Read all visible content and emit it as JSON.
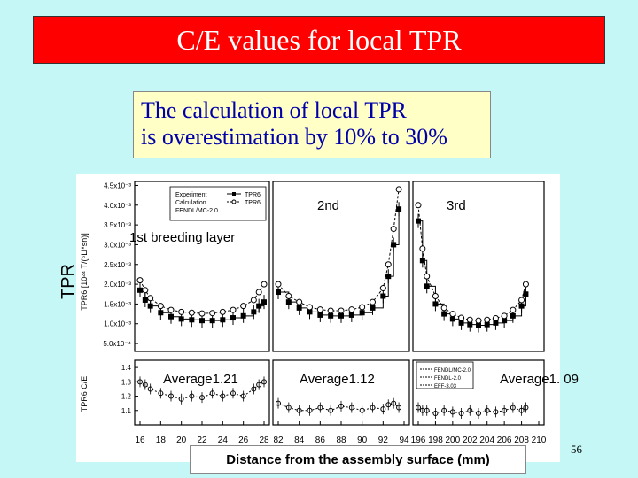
{
  "slide": {
    "title": "C/E values for local TPR",
    "callout_line1": "The calculation of local TPR",
    "callout_line2": "is overestimation by 10% to 30%",
    "side_label": "TPR",
    "x_label": "Distance from the assembly surface (mm)",
    "page_number": "56",
    "colors": {
      "background": "#c5f7f7",
      "title_bg": "#ff0000",
      "callout_bg": "#ffffc6",
      "callout_text": "#0000aa"
    }
  },
  "chart_data": {
    "type": "line",
    "y_axis_top_label": "TPR6 [10²⁴ T/(⁶Li*sn)]",
    "y_axis_bottom_label": "TPR6 C/E",
    "y_ticks_top": [
      "4.5x10⁻³",
      "4.0x10⁻³",
      "3.5x10⁻³",
      "3.0x10⁻³",
      "2.5x10⁻³",
      "2.0x10⁻³",
      "1.5x10⁻³",
      "1.0x10⁻³",
      "5.0x10⁻⁴"
    ],
    "y_ticks_bottom": [
      "1.4",
      "1.3",
      "1.2",
      "1.1"
    ],
    "top_legend": [
      "Experiment",
      "Calculation",
      "FENDL/MC-2.0",
      "TPR6",
      "TPR6"
    ],
    "bottom_legend": [
      "FENDL/MC-2.0",
      "FENDL-2.0",
      "EFF-3.03"
    ],
    "panels": [
      {
        "layer": "1st breeding layer",
        "average_label": "Average1.21",
        "x_ticks": [
          "16",
          "18",
          "20",
          "22",
          "24",
          "26",
          "28"
        ],
        "x": [
          16,
          16.5,
          17,
          18,
          19,
          20,
          21,
          22,
          23,
          24,
          25,
          26,
          27,
          27.5,
          28
        ],
        "experiment": [
          1.85,
          1.6,
          1.45,
          1.28,
          1.18,
          1.12,
          1.1,
          1.08,
          1.08,
          1.1,
          1.15,
          1.2,
          1.3,
          1.45,
          1.55
        ],
        "calculation": [
          2.1,
          1.85,
          1.65,
          1.45,
          1.35,
          1.3,
          1.28,
          1.26,
          1.27,
          1.3,
          1.35,
          1.45,
          1.6,
          1.8,
          2.0
        ],
        "ce": [
          1.3,
          1.28,
          1.25,
          1.22,
          1.2,
          1.18,
          1.2,
          1.19,
          1.22,
          1.2,
          1.22,
          1.2,
          1.25,
          1.28,
          1.3
        ]
      },
      {
        "layer": "2nd",
        "average_label": "Average1.12",
        "x_ticks": [
          "82",
          "84",
          "86",
          "88",
          "90",
          "92",
          "94"
        ],
        "x": [
          82,
          83,
          84,
          85,
          86,
          87,
          88,
          89,
          90,
          91,
          92,
          92.5,
          93,
          93.5
        ],
        "experiment": [
          1.8,
          1.55,
          1.4,
          1.3,
          1.22,
          1.2,
          1.2,
          1.22,
          1.28,
          1.4,
          1.7,
          2.2,
          3.0,
          3.9
        ],
        "calculation": [
          2.0,
          1.7,
          1.55,
          1.42,
          1.36,
          1.33,
          1.33,
          1.36,
          1.42,
          1.55,
          1.9,
          2.5,
          3.4,
          4.4
        ],
        "ce": [
          1.15,
          1.12,
          1.1,
          1.1,
          1.12,
          1.1,
          1.13,
          1.12,
          1.1,
          1.12,
          1.11,
          1.14,
          1.15,
          1.12
        ]
      },
      {
        "layer": "3rd",
        "average_label": "Average1. 09",
        "x_ticks": [
          "196",
          "198",
          "200",
          "202",
          "204",
          "206",
          "208",
          "210"
        ],
        "x": [
          196,
          196.5,
          197,
          198,
          199,
          200,
          201,
          202,
          203,
          204,
          205,
          206,
          207,
          208,
          208.5
        ],
        "experiment": [
          3.6,
          2.6,
          1.95,
          1.5,
          1.25,
          1.12,
          1.02,
          0.98,
          0.96,
          0.98,
          1.02,
          1.08,
          1.2,
          1.45,
          1.75
        ],
        "calculation": [
          4.0,
          2.9,
          2.2,
          1.7,
          1.4,
          1.25,
          1.15,
          1.1,
          1.08,
          1.1,
          1.14,
          1.2,
          1.35,
          1.6,
          2.0
        ],
        "ce": [
          1.12,
          1.1,
          1.1,
          1.08,
          1.1,
          1.09,
          1.08,
          1.1,
          1.08,
          1.1,
          1.09,
          1.1,
          1.12,
          1.1,
          1.12
        ]
      }
    ],
    "ylim_top": [
      0.3,
      4.6
    ],
    "ylim_bottom": [
      1.0,
      1.45
    ],
    "grid": false
  }
}
